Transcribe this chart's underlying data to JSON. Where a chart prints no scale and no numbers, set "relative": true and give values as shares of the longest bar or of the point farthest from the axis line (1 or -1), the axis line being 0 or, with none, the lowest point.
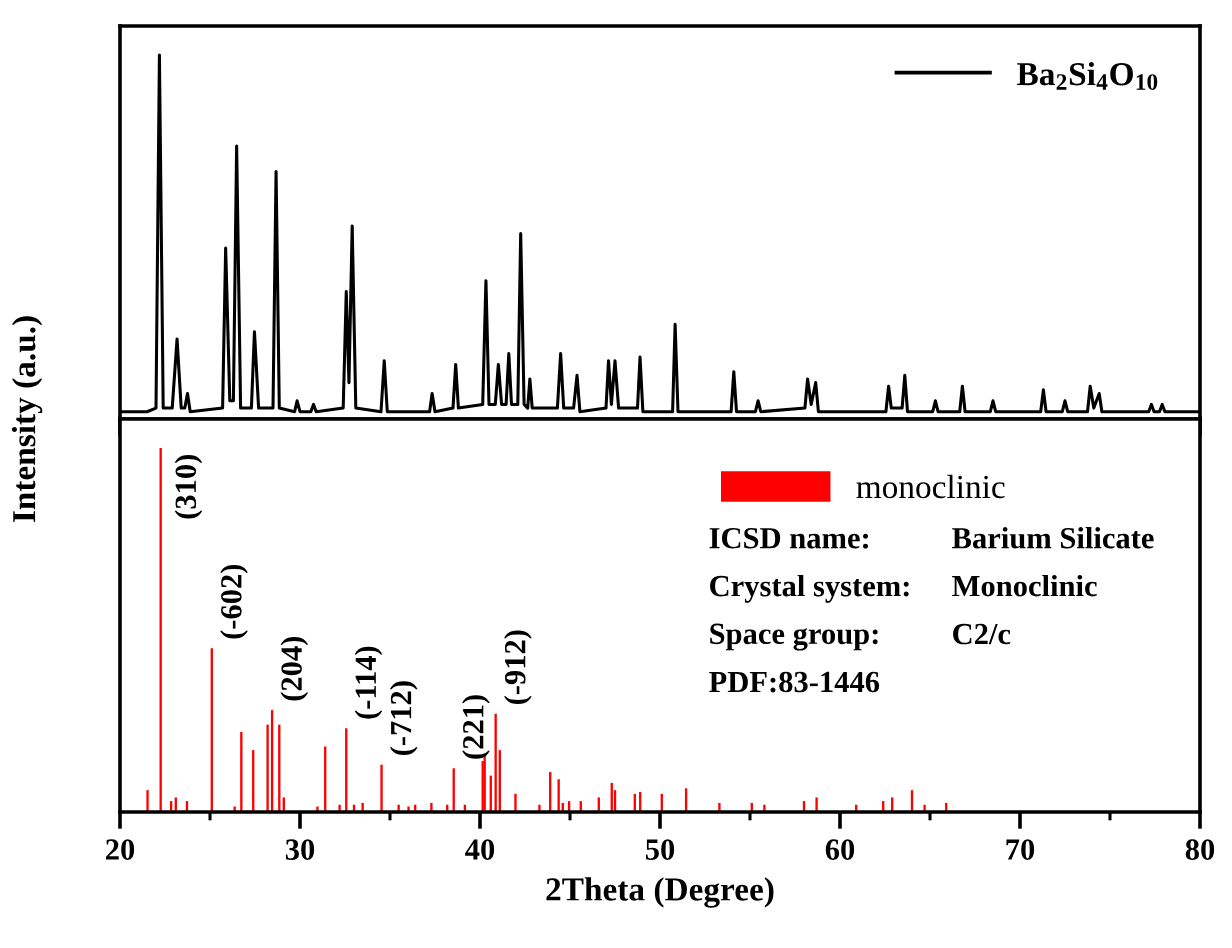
{
  "chart_data": [
    {
      "type": "line",
      "relative": true,
      "xlim": [
        20,
        80
      ],
      "xticks": [
        20,
        30,
        40,
        50,
        60,
        70,
        80
      ],
      "tick_labels": false,
      "legend": "top right",
      "grid": false,
      "series": [
        {
          "name": "Ba$_{2}$Si$_{4}$O$_{10}$",
          "color": "#000000",
          "x": [
            20,
            21.5,
            22.0,
            22.19,
            22.4,
            22.9,
            23.17,
            23.4,
            23.6,
            23.75,
            23.9,
            25.7,
            25.87,
            26.1,
            26.3,
            26.48,
            26.7,
            27.3,
            27.47,
            27.7,
            28.5,
            28.67,
            28.85,
            29.7,
            29.84,
            30.0,
            30.6,
            30.75,
            30.9,
            32.4,
            32.57,
            32.72,
            32.9,
            33.1,
            34.5,
            34.68,
            34.85,
            37.2,
            37.34,
            37.5,
            38.5,
            38.65,
            38.8,
            40.15,
            40.33,
            40.5,
            40.85,
            41.02,
            41.2,
            41.45,
            41.6,
            41.75,
            42.1,
            42.26,
            42.45,
            42.65,
            42.77,
            42.9,
            44.3,
            44.48,
            44.65,
            45.2,
            45.39,
            45.55,
            47.0,
            47.14,
            47.3,
            47.5,
            47.7,
            48.75,
            48.89,
            49.05,
            50.7,
            50.84,
            51.0,
            53.95,
            54.1,
            54.25,
            55.3,
            55.45,
            55.6,
            58.05,
            58.2,
            58.4,
            58.65,
            58.8,
            62.55,
            62.7,
            62.85,
            63.45,
            63.6,
            63.75,
            65.15,
            65.3,
            65.45,
            66.65,
            66.8,
            66.95,
            68.35,
            68.5,
            68.65,
            71.15,
            71.3,
            71.45,
            72.35,
            72.5,
            72.65,
            73.75,
            73.9,
            74.1,
            74.4,
            74.55,
            77.15,
            77.3,
            77.45,
            77.75,
            77.9,
            78.05,
            80
          ],
          "values": [
            0.02,
            0.02,
            0.03,
            1.0,
            0.03,
            0.03,
            0.22,
            0.03,
            0.03,
            0.07,
            0.02,
            0.03,
            0.47,
            0.05,
            0.05,
            0.75,
            0.03,
            0.03,
            0.24,
            0.03,
            0.03,
            0.68,
            0.03,
            0.02,
            0.05,
            0.02,
            0.02,
            0.04,
            0.02,
            0.03,
            0.35,
            0.1,
            0.53,
            0.03,
            0.02,
            0.16,
            0.02,
            0.02,
            0.07,
            0.02,
            0.03,
            0.15,
            0.03,
            0.04,
            0.38,
            0.04,
            0.04,
            0.15,
            0.04,
            0.04,
            0.18,
            0.04,
            0.04,
            0.51,
            0.04,
            0.03,
            0.11,
            0.03,
            0.03,
            0.18,
            0.03,
            0.03,
            0.12,
            0.02,
            0.03,
            0.16,
            0.04,
            0.16,
            0.03,
            0.03,
            0.17,
            0.02,
            0.02,
            0.26,
            0.02,
            0.02,
            0.13,
            0.02,
            0.02,
            0.05,
            0.02,
            0.03,
            0.11,
            0.04,
            0.1,
            0.02,
            0.02,
            0.09,
            0.03,
            0.03,
            0.12,
            0.02,
            0.02,
            0.05,
            0.02,
            0.02,
            0.09,
            0.02,
            0.02,
            0.05,
            0.02,
            0.02,
            0.08,
            0.02,
            0.02,
            0.05,
            0.02,
            0.02,
            0.09,
            0.03,
            0.07,
            0.02,
            0.02,
            0.04,
            0.02,
            0.02,
            0.04,
            0.02,
            0.02
          ]
        }
      ]
    },
    {
      "type": "bar",
      "relative": true,
      "xlim": [
        20,
        80
      ],
      "xticks": [
        20,
        30,
        40,
        50,
        60,
        70,
        80
      ],
      "tick_labels": "x",
      "legend": "top right",
      "grid": false,
      "xlabel": "2Theta (Degree)",
      "ylabel": "Intensity (a.u.)",
      "series": [
        {
          "name": "monoclinic",
          "color": "#ff0000",
          "x": [
            21.53,
            22.26,
            22.84,
            23.1,
            23.72,
            25.1,
            26.37,
            26.74,
            27.4,
            28.2,
            28.45,
            28.85,
            29.1,
            30.97,
            31.4,
            32.2,
            32.57,
            33.0,
            33.48,
            34.53,
            35.48,
            36.03,
            36.4,
            37.3,
            38.18,
            38.54,
            39.16,
            40.15,
            40.26,
            40.6,
            40.87,
            41.1,
            41.97,
            43.3,
            43.9,
            44.37,
            44.6,
            44.95,
            45.6,
            46.6,
            47.32,
            47.5,
            48.6,
            48.9,
            50.1,
            51.45,
            53.3,
            55.1,
            55.8,
            58.0,
            58.7,
            60.9,
            62.4,
            62.9,
            64.0,
            64.7,
            65.9
          ],
          "values": [
            0.06,
            1.0,
            0.03,
            0.04,
            0.03,
            0.45,
            0.015,
            0.22,
            0.17,
            0.24,
            0.28,
            0.24,
            0.04,
            0.015,
            0.18,
            0.02,
            0.23,
            0.02,
            0.025,
            0.13,
            0.02,
            0.015,
            0.02,
            0.025,
            0.02,
            0.12,
            0.02,
            0.14,
            0.16,
            0.1,
            0.27,
            0.17,
            0.05,
            0.02,
            0.11,
            0.09,
            0.025,
            0.03,
            0.03,
            0.04,
            0.08,
            0.06,
            0.05,
            0.055,
            0.05,
            0.065,
            0.025,
            0.025,
            0.02,
            0.03,
            0.04,
            0.02,
            0.03,
            0.04,
            0.06,
            0.02,
            0.025
          ]
        }
      ],
      "annotations": [
        {
          "text": "(310)",
          "x": 22.26,
          "y": 1.0
        },
        {
          "text": "(-602)",
          "x": 25.1,
          "y": 0.45
        },
        {
          "text": "(204)",
          "x": 28.45,
          "y": 0.28
        },
        {
          "text": "(-114)",
          "x": 32.57,
          "y": 0.23
        },
        {
          "text": "(-712)",
          "x": 34.53,
          "y": 0.13
        },
        {
          "text": "(221)",
          "x": 38.54,
          "y": 0.12
        },
        {
          "text": "(-912)",
          "x": 40.87,
          "y": 0.27
        },
        "ICSD name:",
        "Barium Silicate",
        "Crystal system:",
        "Monoclinic",
        "Space group:",
        "C2/c",
        "PDF:83-1446"
      ]
    }
  ]
}
